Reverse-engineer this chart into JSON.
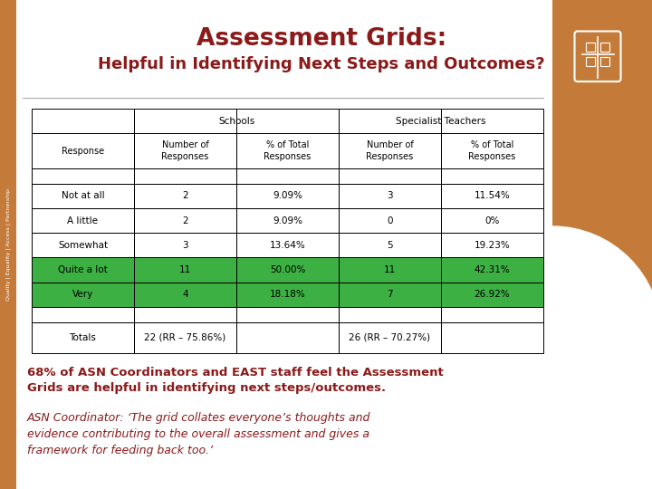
{
  "title_line1": "Assessment Grids:",
  "title_line2": "Helpful in Identifying Next Steps and Outcomes?",
  "bg_color": "#FFFFFF",
  "brown_color": "#C47B3A",
  "dark_red": "#8B1A1A",
  "green_color": "#3CB043",
  "sidebar_color": "#C47B3A",
  "col_headers_top_schools": "Schools",
  "col_headers_top_specialist": "Specialist Teachers",
  "col_headers_bottom": [
    "Response",
    "Number of\nResponses",
    "% of Total\nResponses",
    "Number of\nResponses",
    "% of Total\nResponses"
  ],
  "data_rows": [
    [
      "Not at all",
      "2",
      "9.09%",
      "3",
      "11.54%"
    ],
    [
      "A little",
      "2",
      "9.09%",
      "0",
      "0%"
    ],
    [
      "Somewhat",
      "3",
      "13.64%",
      "5",
      "19.23%"
    ],
    [
      "Quite a lot",
      "11",
      "50.00%",
      "11",
      "42.31%"
    ],
    [
      "Very",
      "4",
      "18.18%",
      "7",
      "26.92%"
    ]
  ],
  "highlight_rows": [
    false,
    false,
    false,
    true,
    true
  ],
  "totals_row": [
    "Totals",
    "22 (RR – 75.86%)",
    "",
    "26 (RR – 70.27%)",
    ""
  ],
  "bottom_text1": "68% of ASN Coordinators and EAST staff feel the Assessment\nGrids are helpful in identifying next steps/outcomes.",
  "bottom_text2": "ASN Coordinator: ‘The grid collates everyone’s thoughts and\nevidence contributing to the overall assessment and gives a\nframework for feeding back too.’",
  "sidebar_text": "Quality | Equality | Access | Partnership"
}
